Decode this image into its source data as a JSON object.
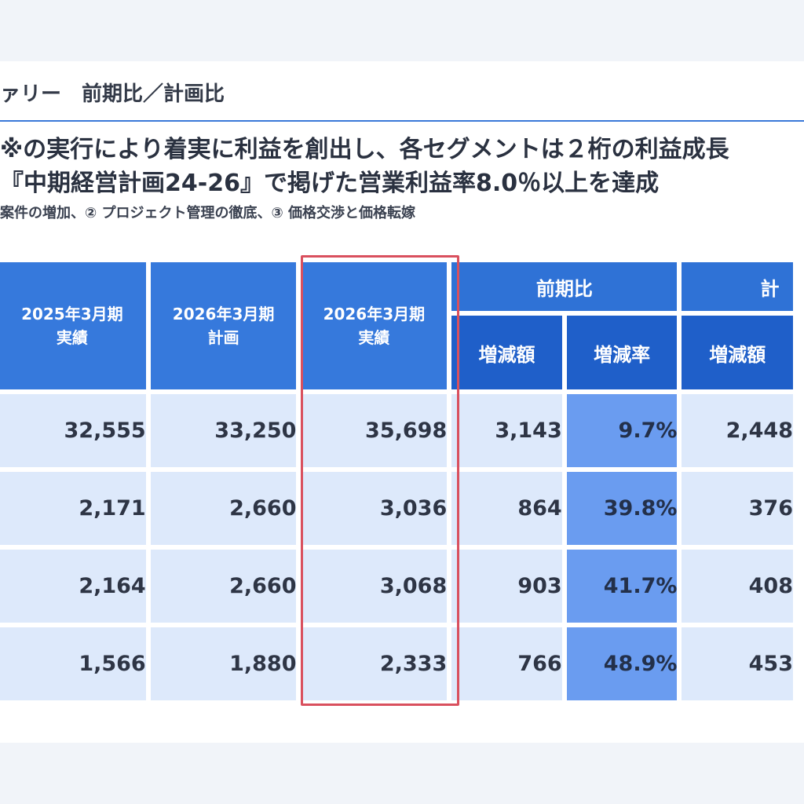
{
  "slide": {
    "title": "ァリー　前期比／計画比",
    "line1": "※の実行により着実に利益を創出し、各セグメントは２桁の利益成長",
    "line2": "『中期経営計画24-26』で掲げた営業利益率8.0％以上を達成",
    "line3": "案件の増加、② プロジェクト管理の徹底、③ 価格交渉と価格転嫁"
  },
  "table": {
    "headers": {
      "col_fy2025_actual": [
        "2025年3月期",
        "実績"
      ],
      "col_fy2026_plan": [
        "2026年3月期",
        "計画"
      ],
      "col_fy2026_actual": [
        "2026年3月期",
        "実績"
      ],
      "group_yoy": "前期比",
      "group_plan": "計",
      "yoy_amount": "増減額",
      "yoy_rate": "増減率",
      "plan_amount": "増減額"
    },
    "rows": [
      {
        "fy2025_actual": "32,555",
        "fy2026_plan": "33,250",
        "fy2026_actual": "35,698",
        "yoy_amount": "3,143",
        "yoy_rate": "9.7%",
        "plan_amount": "2,448"
      },
      {
        "fy2025_actual": "2,171",
        "fy2026_plan": "2,660",
        "fy2026_actual": "3,036",
        "yoy_amount": "864",
        "yoy_rate": "39.8%",
        "plan_amount": "376"
      },
      {
        "fy2025_actual": "2,164",
        "fy2026_plan": "2,660",
        "fy2026_actual": "3,068",
        "yoy_amount": "903",
        "yoy_rate": "41.7%",
        "plan_amount": "408"
      },
      {
        "fy2025_actual": "1,566",
        "fy2026_plan": "1,880",
        "fy2026_actual": "2,333",
        "yoy_amount": "766",
        "yoy_rate": "48.9%",
        "plan_amount": "453"
      }
    ]
  },
  "colors": {
    "header_blue": "#3679dc",
    "subheader_blue": "#1f5fc9",
    "cell_light": "#dde9fb",
    "rate_cell": "#6a9cf0",
    "highlight_border": "#d9505e"
  }
}
